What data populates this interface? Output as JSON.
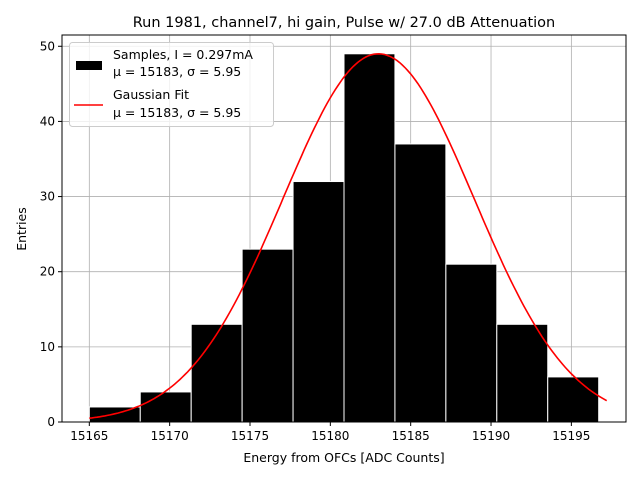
{
  "chart_data": {
    "type": "bar",
    "title": "Run 1981, channel7, hi gain, Pulse w/ 27.0 dB Attenuation",
    "xlabel": "Energy from OFCs [ADC Counts]",
    "ylabel": "Entries",
    "xlim": [
      15163.3,
      15198.4
    ],
    "ylim": [
      0,
      51.5
    ],
    "xticks": [
      15165,
      15170,
      15175,
      15180,
      15185,
      15190,
      15195
    ],
    "yticks": [
      0,
      10,
      20,
      30,
      40,
      50
    ],
    "grid": true,
    "legend_position": "top-left",
    "bin_edges": [
      15165,
      15168.17,
      15171.34,
      15174.51,
      15177.68,
      15180.85,
      15184.02,
      15187.19,
      15190.36,
      15193.53,
      15196.7
    ],
    "values": [
      2,
      4,
      13,
      23,
      32,
      49,
      37,
      21,
      13,
      6
    ],
    "series": [
      {
        "name": "Samples, I = 0.297mA",
        "name_line2": "μ = 15183, σ = 5.95",
        "kind": "histogram",
        "color": "#000000"
      },
      {
        "name": "Gaussian Fit",
        "name_line2": "μ = 15183, σ = 5.95",
        "kind": "line",
        "color": "#ff0000",
        "mu": 15183,
        "sigma": 5.95,
        "amplitude": 49,
        "x_range": [
          15165,
          15197.2
        ]
      }
    ]
  }
}
